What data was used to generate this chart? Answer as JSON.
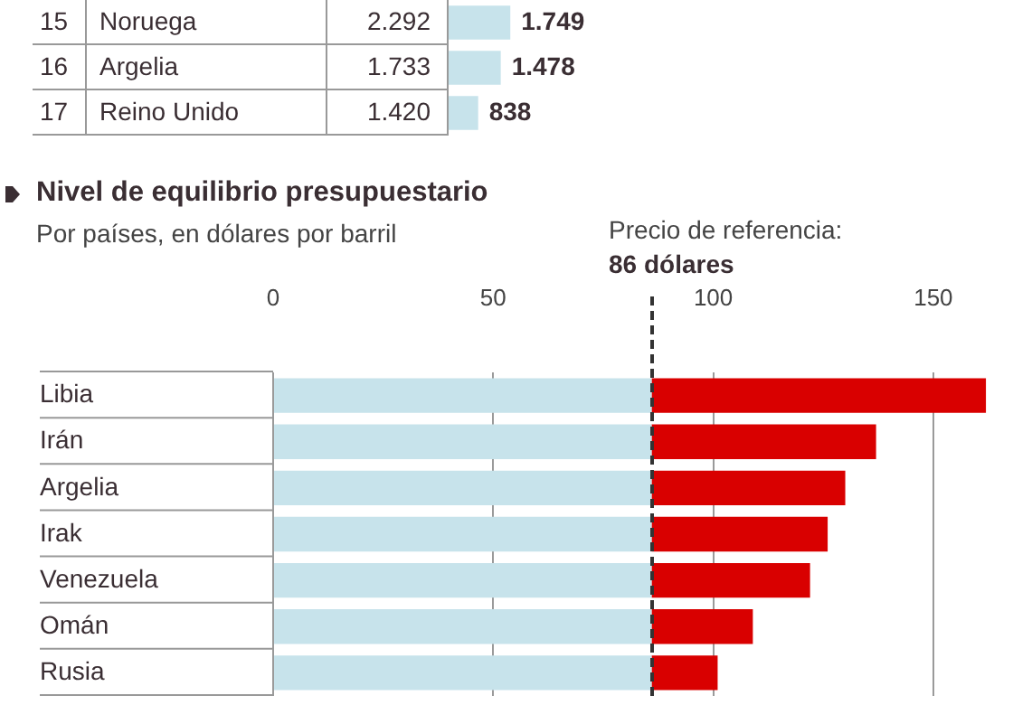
{
  "chart_data": [
    {
      "type": "bar",
      "orientation": "horizontal",
      "categories": [
        "Noruega",
        "Argelia",
        "Reino Unido"
      ],
      "values": [
        1749,
        1478,
        838
      ],
      "value_labels": [
        "1.749",
        "1.478",
        "838"
      ],
      "color": "#c7e3eb",
      "tick_labels": false,
      "annotations": [
        "15",
        "16",
        "17",
        "2.292",
        "1.733",
        "1.420"
      ]
    },
    {
      "type": "bar",
      "orientation": "horizontal",
      "stacked": true,
      "title": "Nivel de equilibrio presupuestario",
      "subtitle": "Por países, en dólares por barril",
      "categories": [
        "Libia",
        "Irán",
        "Argelia",
        "Irak",
        "Venezuela",
        "Omán",
        "Rusia"
      ],
      "series": [
        {
          "color": "#c7e3eb",
          "values": [
            86,
            86,
            86,
            86,
            86,
            86,
            86
          ]
        },
        {
          "color": "#d90000",
          "values": [
            76,
            51,
            44,
            40,
            36,
            23,
            15
          ]
        }
      ],
      "xlim": [
        0,
        162
      ],
      "xticks": [
        0,
        50,
        100,
        150
      ],
      "grid": "x",
      "tick_labels": "x",
      "ref_lines": [
        {
          "axis": "x",
          "value": 86,
          "label": "Precio de referencia:\n86 dólares",
          "line_style": "dashed",
          "color": "#333333"
        }
      ]
    }
  ]
}
